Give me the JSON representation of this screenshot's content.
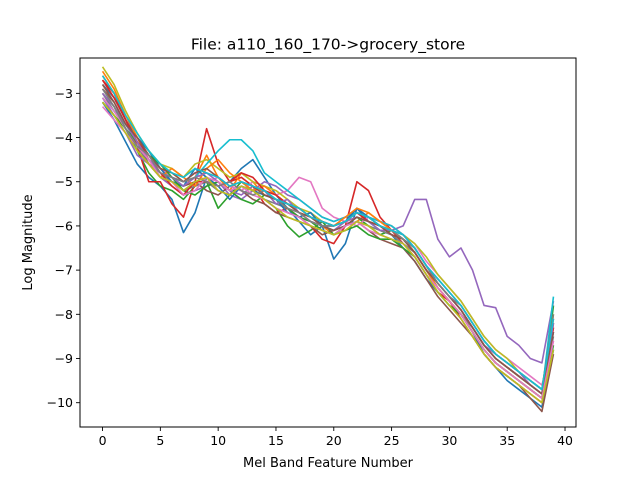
{
  "chart_data": {
    "type": "line",
    "title": "File: a110_160_170->grocery_store",
    "xlabel": "Mel Band Feature Number",
    "ylabel": "Log Magnitude",
    "xlim": [
      -1.95,
      40.95
    ],
    "ylim": [
      -10.55,
      -2.2
    ],
    "xticks": [
      0,
      5,
      10,
      15,
      20,
      25,
      30,
      35,
      40
    ],
    "yticks": [
      -3,
      -4,
      -5,
      -6,
      -7,
      -8,
      -9,
      -10
    ],
    "xtick_labels": [
      "0",
      "5",
      "10",
      "15",
      "20",
      "25",
      "30",
      "35",
      "40"
    ],
    "ytick_labels": [
      "−3",
      "−4",
      "−5",
      "−6",
      "−7",
      "−8",
      "−9",
      "−10"
    ],
    "grid": false,
    "legend": "none",
    "colors": [
      "#1f77b4",
      "#ff7f0e",
      "#2ca02c",
      "#d62728",
      "#9467bd",
      "#8c564b",
      "#e377c2",
      "#7f7f7f",
      "#bcbd22",
      "#17becf"
    ],
    "x": [
      0,
      1,
      2,
      3,
      4,
      5,
      6,
      7,
      8,
      9,
      10,
      11,
      12,
      13,
      14,
      15,
      16,
      17,
      18,
      19,
      20,
      21,
      22,
      23,
      24,
      25,
      26,
      27,
      28,
      29,
      30,
      31,
      32,
      33,
      34,
      35,
      36,
      37,
      38,
      39
    ],
    "series": [
      {
        "values": [
          -3.2,
          -3.6,
          -4.1,
          -4.6,
          -4.9,
          -5.1,
          -5.4,
          -6.15,
          -5.7,
          -4.9,
          -5.1,
          -5.0,
          -4.7,
          -4.5,
          -4.9,
          -5.3,
          -5.6,
          -5.9,
          -6.2,
          -6.0,
          -6.75,
          -6.4,
          -5.6,
          -5.9,
          -6.1,
          -6.2,
          -6.5,
          -6.8,
          -7.2,
          -7.5,
          -7.8,
          -8.0,
          -8.4,
          -8.9,
          -9.2,
          -9.5,
          -9.7,
          -9.9,
          -10.1,
          -8.8
        ]
      },
      {
        "values": [
          -2.5,
          -2.9,
          -3.5,
          -4.0,
          -4.3,
          -4.7,
          -4.8,
          -5.0,
          -4.9,
          -4.4,
          -4.9,
          -5.2,
          -4.8,
          -5.0,
          -5.3,
          -5.4,
          -5.5,
          -5.7,
          -5.8,
          -6.0,
          -6.2,
          -6.1,
          -5.9,
          -5.7,
          -5.9,
          -6.0,
          -6.2,
          -6.5,
          -6.9,
          -7.3,
          -7.6,
          -7.9,
          -8.3,
          -8.7,
          -9.0,
          -9.2,
          -9.4,
          -9.6,
          -9.8,
          -8.3
        ]
      },
      {
        "values": [
          -3.0,
          -3.3,
          -3.8,
          -4.3,
          -4.8,
          -5.1,
          -5.2,
          -5.4,
          -5.1,
          -5.0,
          -5.6,
          -5.3,
          -5.0,
          -5.2,
          -5.4,
          -5.6,
          -6.0,
          -6.25,
          -6.1,
          -5.9,
          -6.2,
          -6.0,
          -5.8,
          -6.0,
          -6.2,
          -6.1,
          -6.3,
          -6.6,
          -7.0,
          -7.4,
          -7.7,
          -8.0,
          -8.4,
          -8.8,
          -9.1,
          -9.3,
          -9.5,
          -9.7,
          -9.9,
          -7.8
        ]
      },
      {
        "values": [
          -2.7,
          -3.0,
          -3.6,
          -4.2,
          -5.0,
          -5.0,
          -5.5,
          -5.8,
          -5.0,
          -3.8,
          -4.6,
          -5.0,
          -4.9,
          -5.1,
          -5.5,
          -5.7,
          -5.6,
          -5.8,
          -6.0,
          -6.3,
          -6.4,
          -6.0,
          -5.0,
          -5.2,
          -5.8,
          -6.1,
          -6.4,
          -6.7,
          -7.1,
          -7.5,
          -7.7,
          -8.1,
          -8.5,
          -8.9,
          -9.2,
          -9.4,
          -9.6,
          -9.8,
          -10.0,
          -8.2
        ]
      },
      {
        "values": [
          -3.1,
          -3.5,
          -3.9,
          -4.4,
          -4.6,
          -4.9,
          -5.1,
          -5.3,
          -5.2,
          -5.1,
          -5.0,
          -5.3,
          -5.4,
          -5.2,
          -5.0,
          -5.1,
          -5.3,
          -5.4,
          -5.6,
          -5.8,
          -5.9,
          -5.8,
          -5.7,
          -5.9,
          -6.0,
          -6.1,
          -6.0,
          -5.4,
          -5.4,
          -6.3,
          -6.7,
          -6.5,
          -7.0,
          -7.8,
          -7.85,
          -8.5,
          -8.7,
          -9.0,
          -9.1,
          -7.7
        ]
      },
      {
        "values": [
          -2.9,
          -3.2,
          -3.7,
          -4.1,
          -4.6,
          -4.9,
          -5.0,
          -5.1,
          -5.0,
          -5.2,
          -5.3,
          -5.1,
          -5.2,
          -5.4,
          -5.5,
          -5.7,
          -5.8,
          -5.9,
          -6.0,
          -6.2,
          -6.1,
          -6.0,
          -5.9,
          -6.1,
          -6.3,
          -6.4,
          -6.5,
          -6.8,
          -7.2,
          -7.6,
          -7.9,
          -8.2,
          -8.5,
          -8.9,
          -9.2,
          -9.4,
          -9.6,
          -9.9,
          -10.2,
          -8.9
        ]
      },
      {
        "values": [
          -3.3,
          -3.6,
          -3.9,
          -4.2,
          -4.5,
          -4.7,
          -4.9,
          -5.0,
          -4.8,
          -5.0,
          -4.9,
          -5.1,
          -5.2,
          -5.0,
          -5.1,
          -5.3,
          -5.2,
          -4.9,
          -5.0,
          -5.6,
          -5.8,
          -5.9,
          -6.0,
          -5.8,
          -5.9,
          -6.0,
          -6.2,
          -6.4,
          -6.8,
          -7.1,
          -7.4,
          -7.7,
          -8.1,
          -8.5,
          -8.8,
          -9.0,
          -9.2,
          -9.4,
          -9.6,
          -8.6
        ]
      },
      {
        "values": [
          -3.0,
          -3.4,
          -3.8,
          -4.2,
          -4.6,
          -4.8,
          -5.0,
          -5.2,
          -5.1,
          -5.0,
          -5.2,
          -5.3,
          -5.1,
          -5.2,
          -5.4,
          -5.5,
          -5.6,
          -5.8,
          -5.9,
          -6.0,
          -6.1,
          -6.0,
          -5.9,
          -6.0,
          -6.1,
          -6.2,
          -6.4,
          -6.6,
          -7.0,
          -7.4,
          -7.7,
          -8.0,
          -8.3,
          -8.7,
          -9.0,
          -9.2,
          -9.4,
          -9.6,
          -9.8,
          -8.5
        ]
      },
      {
        "values": [
          -2.4,
          -2.8,
          -3.4,
          -3.9,
          -4.3,
          -4.6,
          -4.7,
          -4.9,
          -4.6,
          -4.5,
          -4.7,
          -4.9,
          -4.8,
          -5.0,
          -5.1,
          -5.2,
          -5.4,
          -5.6,
          -5.7,
          -5.9,
          -6.0,
          -5.9,
          -5.8,
          -5.9,
          -6.0,
          -6.1,
          -6.2,
          -6.4,
          -6.7,
          -7.1,
          -7.4,
          -7.7,
          -8.1,
          -8.5,
          -8.8,
          -9.0,
          -9.3,
          -9.5,
          -9.7,
          -8.0
        ]
      },
      {
        "values": [
          -3.1,
          -3.4,
          -3.7,
          -4.1,
          -4.5,
          -4.8,
          -4.9,
          -5.0,
          -4.9,
          -4.6,
          -4.3,
          -4.05,
          -4.05,
          -4.3,
          -4.8,
          -5.0,
          -5.2,
          -5.4,
          -5.6,
          -5.8,
          -5.9,
          -5.8,
          -5.7,
          -5.8,
          -5.9,
          -6.0,
          -6.2,
          -6.5,
          -6.9,
          -7.3,
          -7.6,
          -7.9,
          -8.3,
          -8.7,
          -9.0,
          -9.2,
          -9.4,
          -9.6,
          -9.8,
          -7.6
        ]
      },
      {
        "values": [
          -2.8,
          -3.1,
          -3.6,
          -4.0,
          -4.3,
          -4.7,
          -5.0,
          -5.1,
          -4.7,
          -4.9,
          -5.1,
          -5.4,
          -5.1,
          -5.2,
          -5.3,
          -5.4,
          -5.7,
          -5.8,
          -5.7,
          -6.0,
          -6.0,
          -5.9,
          -5.6,
          -5.8,
          -6.0,
          -6.1,
          -6.3,
          -6.5,
          -6.9,
          -7.2,
          -7.5,
          -7.8,
          -8.2,
          -8.6,
          -8.9,
          -9.1,
          -9.3,
          -9.5,
          -9.7,
          -8.4
        ]
      },
      {
        "values": [
          -2.6,
          -3.0,
          -3.5,
          -4.0,
          -4.5,
          -4.9,
          -4.7,
          -4.9,
          -5.1,
          -4.7,
          -4.5,
          -4.8,
          -5.0,
          -5.2,
          -5.1,
          -5.3,
          -5.5,
          -5.6,
          -5.8,
          -5.9,
          -6.0,
          -5.8,
          -5.6,
          -5.7,
          -5.9,
          -6.1,
          -6.3,
          -6.6,
          -7.0,
          -7.4,
          -7.7,
          -8.0,
          -8.4,
          -8.8,
          -9.1,
          -9.3,
          -9.5,
          -9.7,
          -9.9,
          -8.1
        ]
      },
      {
        "values": [
          -3.2,
          -3.5,
          -3.8,
          -4.1,
          -4.4,
          -4.6,
          -4.9,
          -5.2,
          -5.3,
          -5.1,
          -5.0,
          -5.2,
          -5.4,
          -5.5,
          -5.3,
          -5.4,
          -5.6,
          -5.8,
          -5.9,
          -6.1,
          -6.2,
          -6.1,
          -6.0,
          -6.2,
          -6.3,
          -6.3,
          -6.5,
          -6.7,
          -7.1,
          -7.5,
          -7.8,
          -8.0,
          -8.4,
          -8.8,
          -9.1,
          -9.3,
          -9.5,
          -9.7,
          -9.9,
          -8.7
        ]
      },
      {
        "values": [
          -2.7,
          -3.1,
          -3.6,
          -4.1,
          -4.4,
          -4.8,
          -5.1,
          -5.3,
          -5.0,
          -5.0,
          -5.1,
          -5.0,
          -4.8,
          -4.9,
          -5.2,
          -5.3,
          -5.5,
          -5.6,
          -5.8,
          -5.9,
          -6.0,
          -5.9,
          -5.7,
          -5.9,
          -6.0,
          -6.2,
          -6.3,
          -6.6,
          -7.0,
          -7.3,
          -7.6,
          -7.9,
          -8.3,
          -8.7,
          -9.0,
          -9.2,
          -9.4,
          -9.6,
          -9.8,
          -8.3
        ]
      },
      {
        "values": [
          -3.0,
          -3.3,
          -3.7,
          -4.1,
          -4.5,
          -4.8,
          -4.9,
          -5.1,
          -4.9,
          -4.8,
          -5.0,
          -5.2,
          -5.3,
          -5.1,
          -5.2,
          -5.5,
          -5.4,
          -5.7,
          -5.9,
          -6.0,
          -6.1,
          -5.9,
          -5.8,
          -5.9,
          -6.1,
          -6.1,
          -6.2,
          -6.5,
          -6.9,
          -7.3,
          -7.6,
          -7.9,
          -8.3,
          -8.7,
          -8.9,
          -9.1,
          -9.3,
          -9.6,
          -9.8,
          -8.2
        ]
      },
      {
        "values": [
          -2.8,
          -3.2,
          -3.7,
          -4.0,
          -4.4,
          -4.7,
          -4.8,
          -5.0,
          -4.8,
          -4.7,
          -4.9,
          -5.1,
          -5.0,
          -5.1,
          -5.3,
          -5.4,
          -5.5,
          -5.7,
          -5.8,
          -6.0,
          -6.1,
          -6.0,
          -5.8,
          -5.9,
          -6.0,
          -6.2,
          -6.3,
          -6.6,
          -7.0,
          -7.3,
          -7.6,
          -7.9,
          -8.3,
          -8.7,
          -9.0,
          -9.2,
          -9.4,
          -9.6,
          -9.8,
          -8.4
        ]
      },
      {
        "values": [
          -3.1,
          -3.4,
          -3.8,
          -4.2,
          -4.5,
          -4.9,
          -5.0,
          -5.3,
          -5.2,
          -4.9,
          -5.0,
          -5.2,
          -5.1,
          -5.3,
          -5.4,
          -5.6,
          -5.7,
          -5.8,
          -6.0,
          -6.1,
          -6.2,
          -6.0,
          -5.9,
          -6.1,
          -6.2,
          -6.3,
          -6.4,
          -6.7,
          -7.1,
          -7.4,
          -7.7,
          -8.0,
          -8.4,
          -8.8,
          -9.1,
          -9.3,
          -9.5,
          -9.7,
          -9.9,
          -8.6
        ]
      },
      {
        "values": [
          -2.9,
          -3.3,
          -3.8,
          -4.2,
          -4.4,
          -4.8,
          -4.9,
          -5.0,
          -4.9,
          -5.0,
          -5.1,
          -5.0,
          -5.2,
          -5.3,
          -5.2,
          -5.4,
          -5.6,
          -5.7,
          -5.9,
          -6.0,
          -6.0,
          -5.9,
          -5.7,
          -5.8,
          -6.0,
          -6.1,
          -6.3,
          -6.5,
          -6.9,
          -7.3,
          -7.6,
          -7.8,
          -8.2,
          -8.6,
          -8.9,
          -9.1,
          -9.3,
          -9.5,
          -9.7,
          -8.0
        ]
      },
      {
        "values": [
          -3.2,
          -3.5,
          -3.9,
          -4.3,
          -4.6,
          -4.9,
          -5.0,
          -5.2,
          -5.0,
          -4.9,
          -5.2,
          -5.3,
          -5.1,
          -5.2,
          -5.4,
          -5.6,
          -5.8,
          -5.9,
          -6.0,
          -6.1,
          -6.2,
          -6.1,
          -5.9,
          -6.0,
          -6.2,
          -6.3,
          -6.4,
          -6.7,
          -7.1,
          -7.5,
          -7.8,
          -8.1,
          -8.5,
          -8.9,
          -9.2,
          -9.4,
          -9.6,
          -9.8,
          -10.0,
          -8.8
        ]
      },
      {
        "values": [
          -2.6,
          -3.0,
          -3.5,
          -3.9,
          -4.3,
          -4.6,
          -4.8,
          -4.9,
          -4.7,
          -4.8,
          -4.9,
          -5.1,
          -5.0,
          -5.1,
          -5.2,
          -5.4,
          -5.5,
          -5.6,
          -5.8,
          -5.9,
          -6.0,
          -5.9,
          -5.7,
          -5.8,
          -6.0,
          -6.1,
          -6.2,
          -6.5,
          -6.9,
          -7.2,
          -7.5,
          -7.8,
          -8.2,
          -8.6,
          -8.9,
          -9.1,
          -9.3,
          -9.5,
          -9.7,
          -8.1
        ]
      }
    ]
  }
}
